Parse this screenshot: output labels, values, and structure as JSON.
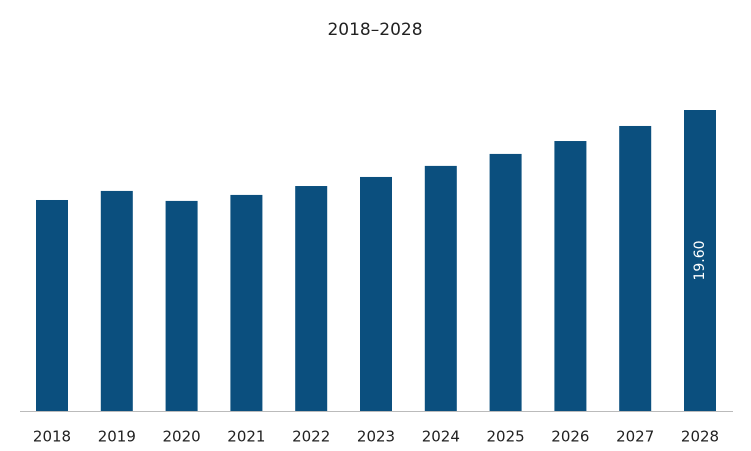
{
  "chart_data": {
    "type": "bar",
    "title": "2018–2028",
    "categories": [
      "2018",
      "2019",
      "2020",
      "2021",
      "2022",
      "2023",
      "2024",
      "2025",
      "2026",
      "2027",
      "2028"
    ],
    "values": [
      13.74,
      14.33,
      13.68,
      14.07,
      14.65,
      15.24,
      15.96,
      16.74,
      17.58,
      18.56,
      19.6
    ],
    "value_labels": [
      null,
      null,
      null,
      null,
      null,
      null,
      null,
      null,
      null,
      null,
      "19.60"
    ],
    "color": "#0b4f7e"
  }
}
